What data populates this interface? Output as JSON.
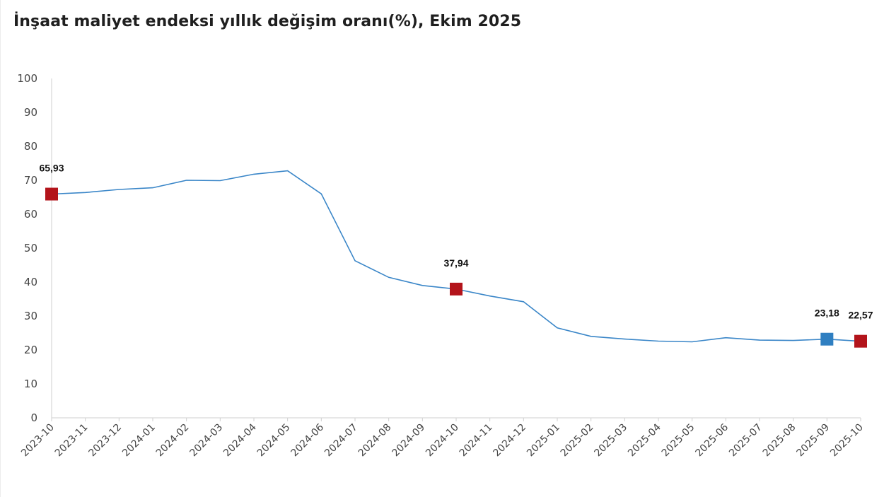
{
  "title": "İnşaat maliyet endeksi yıllık değişim oranı(%), Ekim 2025",
  "colors": {
    "line": "#3a86c8",
    "marker_red": "#b3141b",
    "marker_blue": "#2f7fc1",
    "axis": "#cfcfcf"
  },
  "chart_data": {
    "type": "line",
    "title": "İnşaat maliyet endeksi yıllık değişim oranı(%), Ekim 2025",
    "xlabel": "",
    "ylabel": "",
    "ylim": [
      0,
      100
    ],
    "yticks": [
      0,
      10,
      20,
      30,
      40,
      50,
      60,
      70,
      80,
      90,
      100
    ],
    "grid": false,
    "legend": "none",
    "categories": [
      "2023-10",
      "2023-11",
      "2023-12",
      "2024-01",
      "2024-02",
      "2024-03",
      "2024-04",
      "2024-05",
      "2024-06",
      "2024-07",
      "2024-08",
      "2024-09",
      "2024-10",
      "2024-11",
      "2024-12",
      "2025-01",
      "2025-02",
      "2025-03",
      "2025-04",
      "2025-05",
      "2025-06",
      "2025-07",
      "2025-08",
      "2025-09",
      "2025-10"
    ],
    "series": [
      {
        "values": [
          65.93,
          66.4,
          67.3,
          67.8,
          70.0,
          69.9,
          71.8,
          72.8,
          66.0,
          46.3,
          41.4,
          39.0,
          37.94,
          35.9,
          34.2,
          26.5,
          24.0,
          23.2,
          22.6,
          22.4,
          23.6,
          22.9,
          22.8,
          23.18,
          22.57
        ]
      }
    ],
    "markers": [
      {
        "category": "2023-10",
        "value": 65.93,
        "label": "65,93",
        "color": "red"
      },
      {
        "category": "2024-10",
        "value": 37.94,
        "label": "37,94",
        "color": "red"
      },
      {
        "category": "2025-09",
        "value": 23.18,
        "label": "23,18",
        "color": "blue"
      },
      {
        "category": "2025-10",
        "value": 22.57,
        "label": "22,57",
        "color": "red"
      }
    ]
  }
}
